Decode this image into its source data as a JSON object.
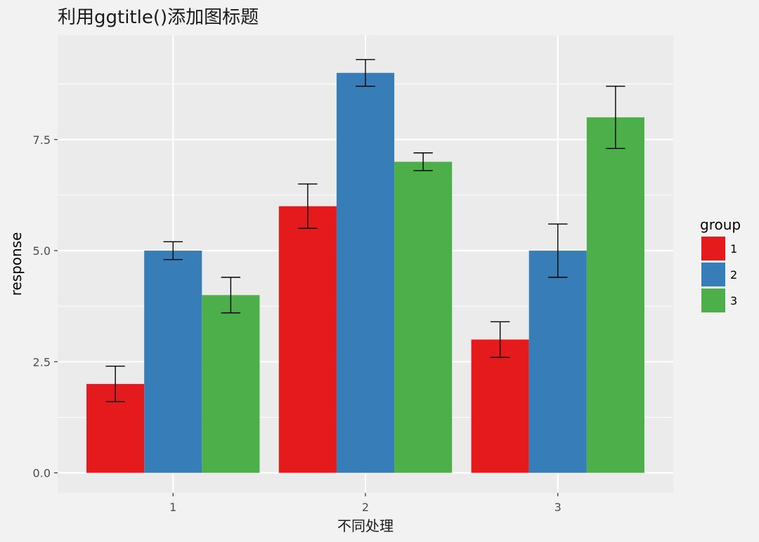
{
  "chart_data": {
    "type": "bar",
    "title": "利用ggtitle()添加图标题",
    "xlabel": "不同处理",
    "ylabel": "response",
    "categories": [
      "1",
      "2",
      "3"
    ],
    "ylim": [
      -0.45,
      9.85
    ],
    "yticks": [
      0.0,
      2.5,
      5.0,
      7.5
    ],
    "ytick_labels": [
      "0.0",
      "2.5",
      "5.0",
      "7.5"
    ],
    "grid": true,
    "legend": {
      "title": "group",
      "placement": "right"
    },
    "series": [
      {
        "name": "1",
        "color": "#E41A1C",
        "values": [
          2,
          6,
          3
        ],
        "errors": [
          0.4,
          0.5,
          0.4
        ]
      },
      {
        "name": "2",
        "color": "#377EB8",
        "values": [
          5,
          9,
          5
        ],
        "errors": [
          0.2,
          0.3,
          0.6
        ]
      },
      {
        "name": "3",
        "color": "#4DAF4A",
        "values": [
          4,
          7,
          8
        ],
        "errors": [
          0.4,
          0.2,
          0.7
        ]
      }
    ],
    "panel_background": "#ebebeb",
    "grid_color": "#ffffff",
    "errorbar_color": "#000000"
  }
}
